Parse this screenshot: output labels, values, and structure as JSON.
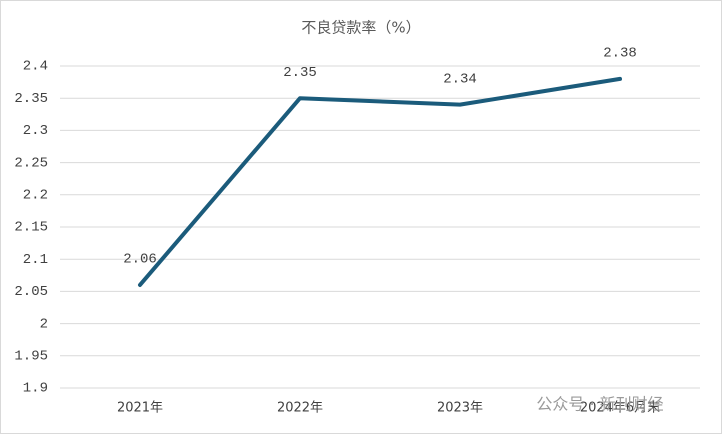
{
  "chart_data": {
    "type": "line",
    "title": "不良贷款率（%）",
    "categories": [
      "2021年",
      "2022年",
      "2023年",
      "2024年6月末"
    ],
    "values": [
      2.06,
      2.35,
      2.34,
      2.38
    ],
    "color": "#1b5b7b",
    "ylim": [
      1.9,
      2.4
    ],
    "yticks": [
      1.9,
      1.95,
      2,
      2.05,
      2.1,
      2.15,
      2.2,
      2.25,
      2.3,
      2.35,
      2.4
    ],
    "grid": true,
    "data_labels": true
  },
  "watermark": "公众号 · 新刊财经"
}
